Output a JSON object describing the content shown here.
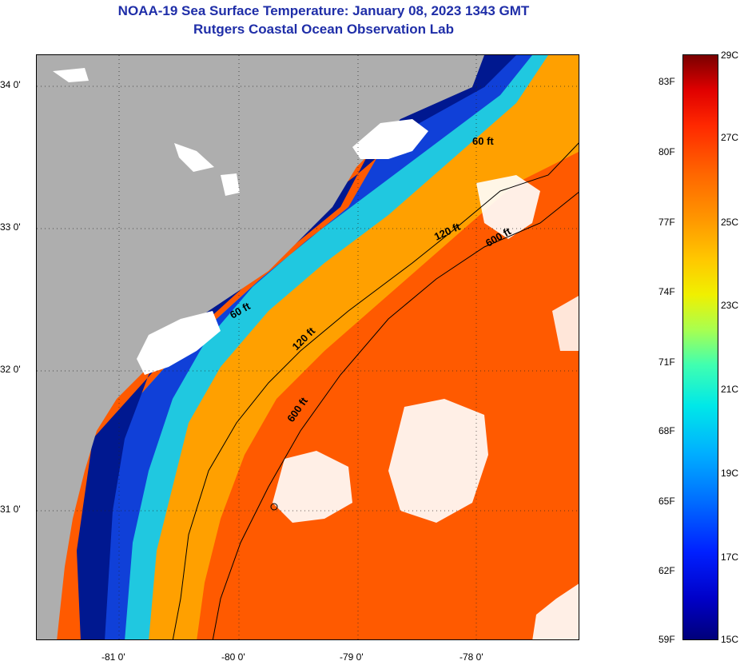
{
  "header": {
    "title": "NOAA-19 Sea Surface Temperature:  January 08, 2023 1343 GMT",
    "subtitle": "Rutgers Coastal Ocean Observation Lab"
  },
  "map": {
    "lat_labels": [
      "34 0'",
      "33 0'",
      "32 0'",
      "31 0'"
    ],
    "lon_labels": [
      "-81 0'",
      "-80 0'",
      "-79 0'",
      "-78 0'"
    ],
    "contour_labels": [
      "60 ft",
      "120 ft",
      "600 ft",
      "120 ft",
      "600 ft",
      "60 ft"
    ],
    "colors": {
      "land": "#aeaeae",
      "cloud": "#ffffff",
      "cold": "#00107a",
      "warm": "#ff5a00"
    }
  },
  "colorbar": {
    "f_labels": [
      "83F",
      "80F",
      "77F",
      "74F",
      "71F",
      "68F",
      "65F",
      "62F",
      "59F"
    ],
    "c_labels": [
      "29C",
      "27C",
      "25C",
      "23C",
      "21C",
      "19C",
      "17C",
      "15C"
    ]
  }
}
